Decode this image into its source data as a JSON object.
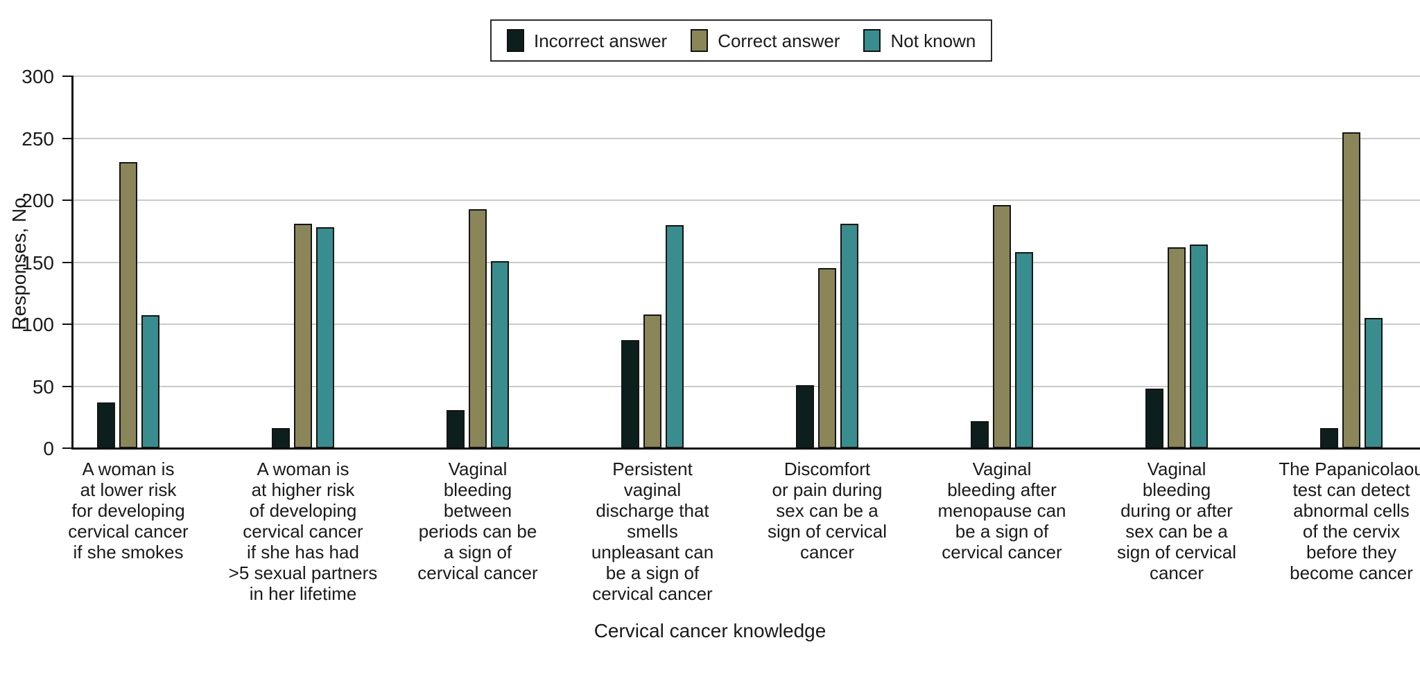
{
  "chart_data": {
    "type": "bar",
    "title": "",
    "xlabel": "Cervical cancer knowledge",
    "ylabel": "Responses, No.",
    "ylim": [
      0,
      300
    ],
    "yticks": [
      0,
      50,
      100,
      150,
      200,
      250,
      300
    ],
    "grid": true,
    "legend_position": "top-center",
    "gridline_color": "#c9c9c9",
    "bar_border_color": "#141414",
    "categories": [
      [
        "A woman is",
        "at lower risk",
        "for developing",
        "cervical cancer",
        "if she smokes"
      ],
      [
        "A woman is",
        "at higher risk",
        "of developing",
        "cervical cancer",
        "if she has had",
        ">5 sexual partners",
        "in her lifetime"
      ],
      [
        "Vaginal",
        "bleeding",
        "between",
        "periods can be",
        "a sign of",
        "cervical cancer"
      ],
      [
        "Persistent",
        "vaginal",
        "discharge that",
        "smells",
        "unpleasant can",
        "be a sign of",
        "cervical cancer"
      ],
      [
        "Discomfort",
        "or pain during",
        "sex can be a",
        "sign of cervical",
        "cancer"
      ],
      [
        "Vaginal",
        "bleeding after",
        "menopause can",
        "be a sign of",
        "cervical cancer"
      ],
      [
        "Vaginal",
        "bleeding",
        "during or after",
        "sex can be a",
        "sign of cervical",
        "cancer"
      ],
      [
        "The Papanicolaou",
        "test can detect",
        "abnormal cells",
        "of the cervix",
        "before they",
        "become cancer"
      ]
    ],
    "series": [
      {
        "name": "Incorrect answer",
        "color": "#0d1f1d",
        "values": [
          37,
          16,
          31,
          87,
          51,
          22,
          48,
          16
        ]
      },
      {
        "name": "Correct answer",
        "color": "#8a865a",
        "values": [
          231,
          181,
          193,
          108,
          145,
          196,
          162,
          255
        ]
      },
      {
        "name": "Not known",
        "color": "#3a8d8e",
        "values": [
          107,
          178,
          151,
          180,
          181,
          158,
          164,
          105
        ]
      }
    ]
  }
}
